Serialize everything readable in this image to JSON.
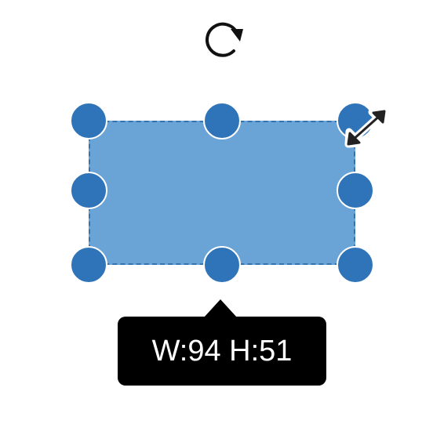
{
  "rotate_control": {
    "icon": "rotate-clockwise-icon"
  },
  "shape": {
    "fill_color": "#6aa3d5",
    "border_color": "#3572b0",
    "handle_color": "#2f74b8"
  },
  "cursor": {
    "icon": "diagonal-resize-cursor-icon"
  },
  "size_tooltip": {
    "text": "W:94 H:51"
  }
}
